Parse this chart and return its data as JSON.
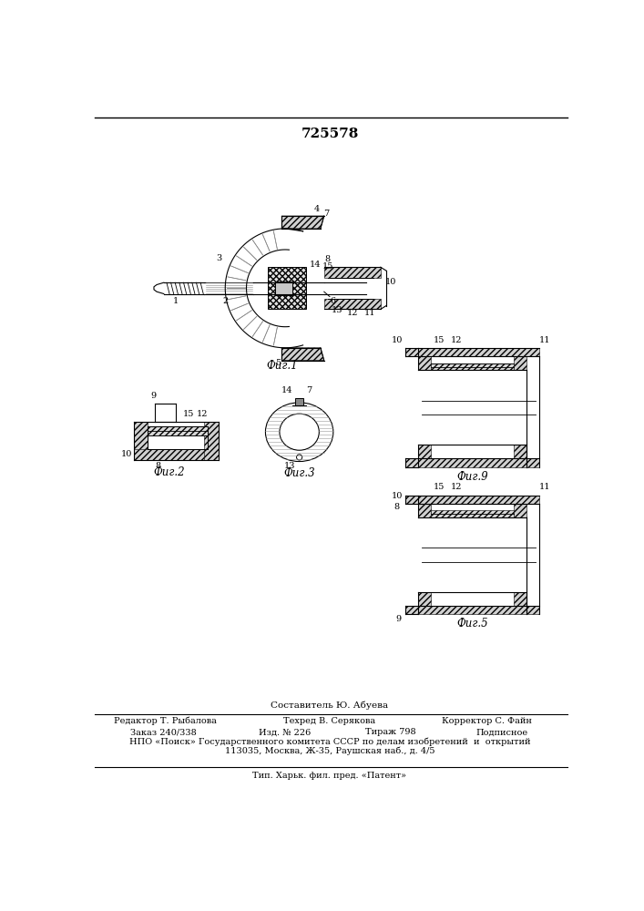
{
  "patent_number": "725578",
  "background_color": "#ffffff",
  "text_color": "#000000",
  "footer_line0": "Составитель Ю. Абуева",
  "footer_line1_left": "Редактор Т. Рыбалова",
  "footer_line1_center": "Техред В. Серякова",
  "footer_line1_right": "Корректор С. Файн",
  "footer_line2_left": "Заказ 240/338",
  "footer_line2_center": "Изд. № 226",
  "footer_line2_center2": "Тираж 798",
  "footer_line2_right": "Подписное",
  "footer_line3": "НПО «Поиск» Государственного комитета СССР по делам изобретений  и  открытий",
  "footer_line4": "113035, Москва, Ж-35, Раушская наб., д. 4/5",
  "footer_line5": "Тип. Харьк. фил. пред. «Патент»",
  "fig1_caption": "Фиг.1",
  "fig2_caption": "Фиг.2",
  "fig3_caption": "Фиг.3",
  "fig4_caption": "Фиг.9",
  "fig5_caption": "Фиг.5"
}
